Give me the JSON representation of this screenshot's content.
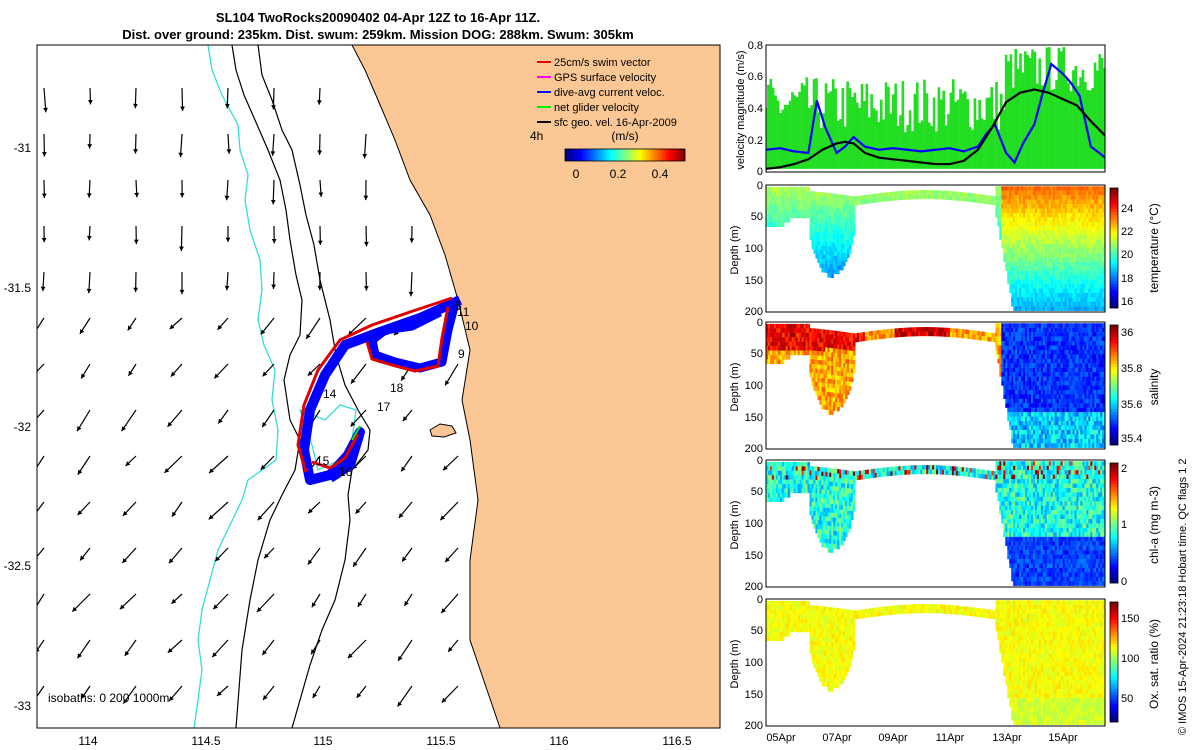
{
  "title": {
    "line1": "SL104 TwoRocks20090402 04-Apr 12Z to 16-Apr 11Z.",
    "line2": "Dist. over ground: 235km. Dist. swum: 259km. Mission DOG: 288km. Swum: 305km"
  },
  "chart_data": [
    {
      "type": "map",
      "xlim": [
        113.8,
        116.7
      ],
      "ylim": [
        -33.1,
        -30.65
      ],
      "x_ticks": [
        "114",
        "114.5",
        "115",
        "115.5",
        "116",
        "116.5"
      ],
      "y_ticks": [
        "-31",
        "-31.5",
        "-32",
        "-32.5",
        "-33"
      ],
      "legend": [
        {
          "label": "25cm/s swim vector",
          "color": "#e00000"
        },
        {
          "label": "GPS surface velocity",
          "color": "#ff00ff"
        },
        {
          "label": "dive-avg current veloc.",
          "color": "#0000ff"
        },
        {
          "label": "net glider velocity",
          "color": "#00ee00"
        },
        {
          "label": "sfc geo. vel. 16-Apr-2009",
          "color": "#000000"
        }
      ],
      "legend_extra": "4h",
      "colorbar": {
        "label": "(m/s)",
        "ticks": [
          "0",
          "0.2",
          "0.4"
        ],
        "range": [
          0,
          0.5
        ]
      },
      "isobath_label": "isobaths: 0   200  1000m",
      "track_labels": [
        "5",
        "11",
        "10",
        "9",
        "18",
        "17",
        "14",
        "15",
        "16"
      ],
      "land_color": "#fbc795"
    },
    {
      "type": "line",
      "ylabel": "velocity magnitude (m/s)",
      "ylim": [
        0,
        0.8
      ],
      "y_ticks": [
        "0",
        "0.2",
        "0.4",
        "0.6",
        "0.8"
      ],
      "x_day_range": [
        4.5,
        16.5
      ],
      "series": [
        {
          "color": "#0000ff",
          "x": [
            4.5,
            5.0,
            5.5,
            6.0,
            6.3,
            6.6,
            7.0,
            7.3,
            7.6,
            8.0,
            8.5,
            9.0,
            9.5,
            10.0,
            10.5,
            11.0,
            11.5,
            12.0,
            12.3,
            12.6,
            13.0,
            13.3,
            13.6,
            14.0,
            14.3,
            14.6,
            15.0,
            15.3,
            15.6,
            16.0,
            16.3,
            16.5
          ],
          "y": [
            0.14,
            0.15,
            0.13,
            0.12,
            0.45,
            0.28,
            0.12,
            0.16,
            0.22,
            0.16,
            0.14,
            0.15,
            0.14,
            0.13,
            0.14,
            0.15,
            0.13,
            0.16,
            0.24,
            0.3,
            0.12,
            0.06,
            0.18,
            0.3,
            0.5,
            0.68,
            0.62,
            0.56,
            0.48,
            0.16,
            0.12,
            0.09
          ]
        },
        {
          "color": "#000000",
          "x": [
            4.5,
            5.0,
            5.5,
            6.0,
            6.5,
            7.0,
            7.3,
            7.6,
            8.0,
            8.5,
            9.0,
            9.5,
            10.0,
            10.5,
            11.0,
            11.5,
            12.0,
            12.5,
            13.0,
            13.5,
            14.0,
            14.5,
            15.0,
            15.5,
            16.0,
            16.5
          ],
          "y": [
            0.02,
            0.03,
            0.05,
            0.08,
            0.14,
            0.18,
            0.19,
            0.18,
            0.12,
            0.09,
            0.08,
            0.07,
            0.06,
            0.05,
            0.05,
            0.07,
            0.14,
            0.28,
            0.44,
            0.5,
            0.52,
            0.5,
            0.46,
            0.42,
            0.32,
            0.23
          ]
        }
      ]
    },
    {
      "type": "heatmap",
      "ylabel": "Depth (m)",
      "cbar_label": "temperature (°C)",
      "clim": [
        15.5,
        25.5
      ],
      "cbar_ticks": [
        "16",
        "18",
        "20",
        "22",
        "24"
      ],
      "y_ticks": [
        "0",
        "50",
        "100",
        "150",
        "200"
      ],
      "ylim": [
        0,
        200
      ]
    },
    {
      "type": "heatmap",
      "ylabel": "Depth (m)",
      "cbar_label": "salinity",
      "clim": [
        35.35,
        36.05
      ],
      "cbar_ticks": [
        "35.4",
        "35.6",
        "35.8",
        "36"
      ],
      "y_ticks": [
        "0",
        "50",
        "100",
        "150",
        "200"
      ],
      "ylim": [
        0,
        200
      ]
    },
    {
      "type": "heatmap",
      "ylabel": "Depth (m)",
      "cbar_label": "chl-a (mg m-3)",
      "clim": [
        0,
        2
      ],
      "cbar_ticks": [
        "0",
        "1",
        "2"
      ],
      "y_ticks": [
        "0",
        "50",
        "100",
        "150",
        "200"
      ],
      "ylim": [
        0,
        200
      ]
    },
    {
      "type": "heatmap",
      "ylabel": "Depth (m)",
      "cbar_label": "Ox. sat. ratio (%)",
      "clim": [
        25,
        175
      ],
      "cbar_ticks": [
        "50",
        "100",
        "150"
      ],
      "y_ticks": [
        "0",
        "50",
        "100",
        "150",
        "200"
      ],
      "ylim": [
        0,
        200
      ]
    }
  ],
  "time_axis": {
    "ticks": [
      "05Apr",
      "07Apr",
      "09Apr",
      "11Apr",
      "13Apr",
      "15Apr"
    ]
  },
  "credit": "© IMOS 15-Apr-2024 21:23:18 Hobart time. QC flags 1  2"
}
